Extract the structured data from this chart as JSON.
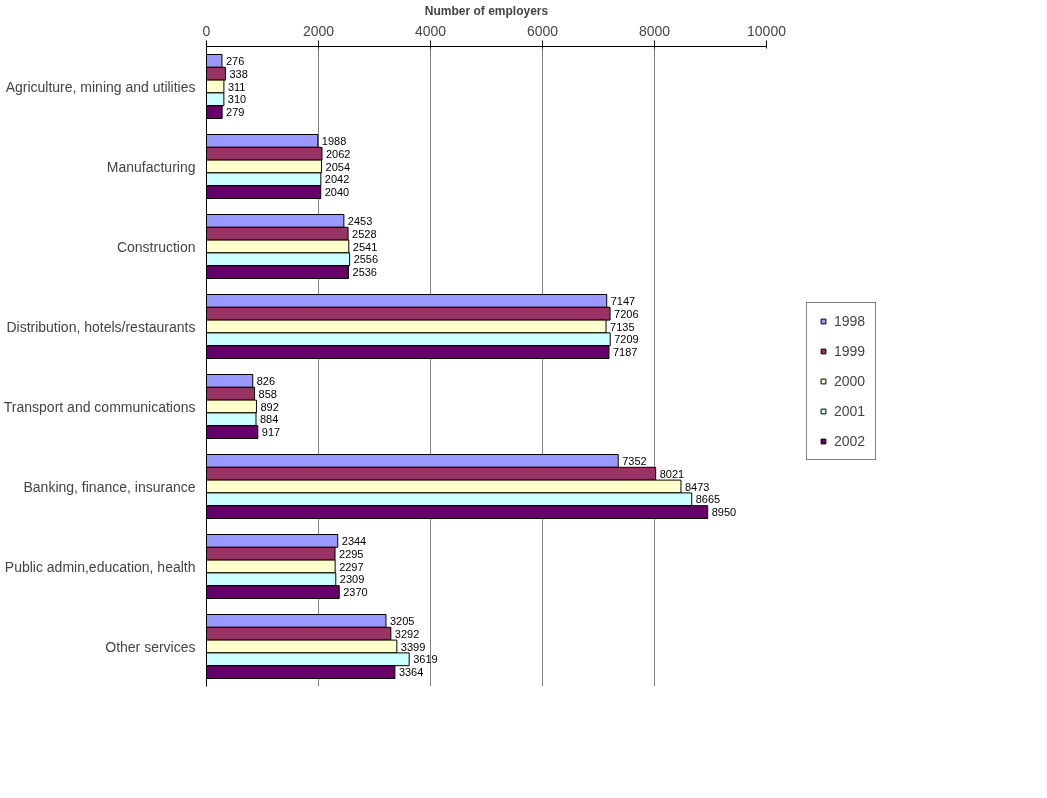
{
  "chart_data": {
    "type": "bar",
    "orientation": "horizontal",
    "xlabel": "Number of employers",
    "categories": [
      "Agriculture, mining and utilities",
      "Manufacturing",
      "Construction",
      "Distribution, hotels/restaurants",
      "Transport and communications",
      "Banking, finance, insurance",
      "Public admin,education, health",
      "Other services"
    ],
    "series": [
      {
        "name": "1998",
        "color": "#9999ff",
        "values": [
          276,
          1988,
          2453,
          7147,
          826,
          7352,
          2344,
          3205
        ]
      },
      {
        "name": "1999",
        "color": "#993366",
        "values": [
          338,
          2062,
          2528,
          7206,
          858,
          8021,
          2295,
          3292
        ]
      },
      {
        "name": "2000",
        "color": "#ffffcc",
        "values": [
          311,
          2054,
          2541,
          7135,
          892,
          8473,
          2297,
          3399
        ]
      },
      {
        "name": "2001",
        "color": "#ccffff",
        "values": [
          310,
          2042,
          2556,
          7209,
          884,
          8665,
          2309,
          3619
        ]
      },
      {
        "name": "2002",
        "color": "#660066",
        "values": [
          279,
          2040,
          2536,
          7187,
          917,
          8950,
          2370,
          3364
        ]
      }
    ],
    "xlim": [
      0,
      10000
    ],
    "xticks": [
      0,
      2000,
      4000,
      6000,
      8000,
      10000
    ],
    "grid": "x",
    "legend": "right",
    "data_labels": true
  }
}
